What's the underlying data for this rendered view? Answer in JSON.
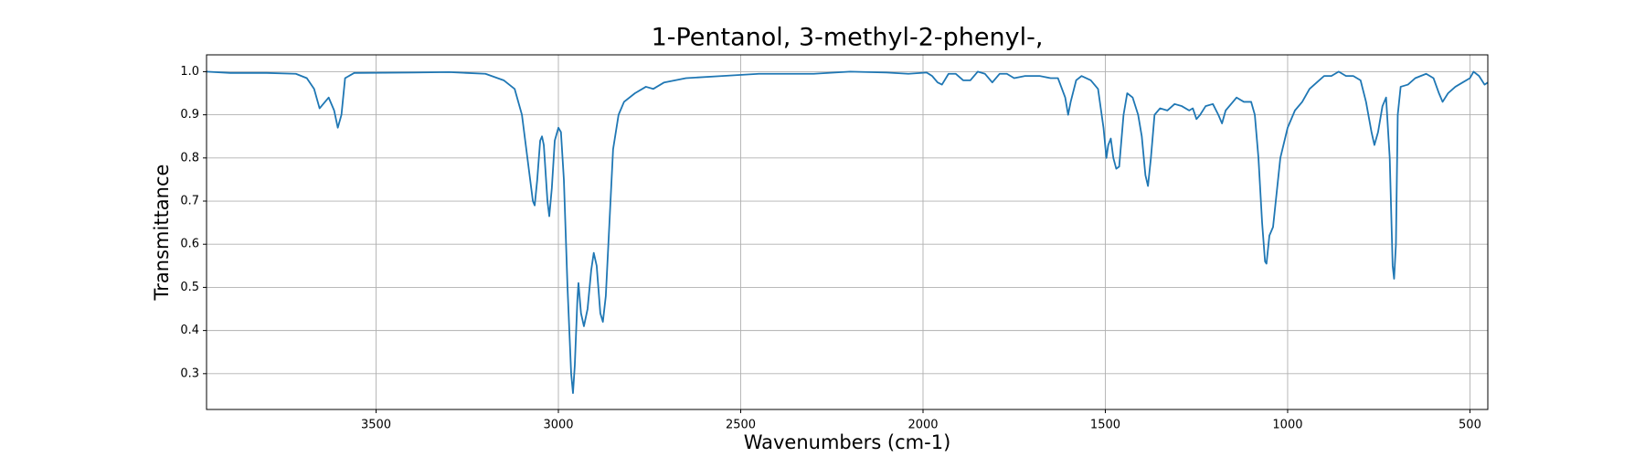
{
  "chart_data": {
    "type": "line",
    "title": "1-Pentanol, 3-methyl-2-phenyl-,",
    "xlabel": "Wavenumbers (cm-1)",
    "ylabel": "Transmittance",
    "color": "#1f77b4",
    "grid": true,
    "xlim": [
      3965,
      451
    ],
    "ylim": [
      0.217,
      1.039
    ],
    "xticks": [
      3500,
      3000,
      2500,
      2000,
      1500,
      1000,
      500
    ],
    "yticks": [
      0.3,
      0.4,
      0.5,
      0.6,
      0.7,
      0.8,
      0.9,
      {
        "value": 1.0,
        "label": "1.0"
      }
    ],
    "x": [
      3965,
      3900,
      3800,
      3720,
      3690,
      3670,
      3655,
      3640,
      3630,
      3615,
      3605,
      3595,
      3585,
      3560,
      3400,
      3300,
      3200,
      3150,
      3120,
      3100,
      3085,
      3070,
      3065,
      3058,
      3050,
      3045,
      3040,
      3030,
      3025,
      3018,
      3010,
      3000,
      2993,
      2985,
      2975,
      2965,
      2960,
      2955,
      2948,
      2945,
      2938,
      2930,
      2920,
      2910,
      2903,
      2895,
      2885,
      2878,
      2870,
      2860,
      2850,
      2835,
      2820,
      2790,
      2760,
      2740,
      2710,
      2650,
      2550,
      2450,
      2300,
      2200,
      2100,
      2040,
      1990,
      1975,
      1960,
      1948,
      1930,
      1910,
      1890,
      1870,
      1850,
      1830,
      1810,
      1790,
      1770,
      1750,
      1720,
      1680,
      1650,
      1630,
      1610,
      1602,
      1595,
      1580,
      1565,
      1540,
      1520,
      1505,
      1497,
      1492,
      1485,
      1478,
      1470,
      1462,
      1450,
      1440,
      1425,
      1410,
      1400,
      1390,
      1383,
      1375,
      1365,
      1350,
      1330,
      1310,
      1290,
      1270,
      1260,
      1250,
      1240,
      1225,
      1205,
      1190,
      1180,
      1170,
      1150,
      1140,
      1120,
      1100,
      1090,
      1080,
      1070,
      1062,
      1058,
      1050,
      1040,
      1030,
      1020,
      1000,
      980,
      960,
      940,
      920,
      900,
      880,
      860,
      840,
      820,
      800,
      785,
      770,
      762,
      752,
      740,
      730,
      720,
      712,
      708,
      703,
      698,
      690,
      670,
      650,
      620,
      600,
      585,
      575,
      560,
      540,
      520,
      500,
      490,
      475,
      460,
      451
    ],
    "values": [
      1.0,
      0.997,
      0.997,
      0.995,
      0.985,
      0.96,
      0.915,
      0.93,
      0.94,
      0.91,
      0.87,
      0.9,
      0.985,
      0.997,
      0.998,
      0.999,
      0.995,
      0.98,
      0.96,
      0.9,
      0.8,
      0.7,
      0.69,
      0.75,
      0.84,
      0.85,
      0.83,
      0.7,
      0.665,
      0.73,
      0.84,
      0.87,
      0.86,
      0.75,
      0.5,
      0.3,
      0.255,
      0.32,
      0.47,
      0.51,
      0.44,
      0.41,
      0.45,
      0.54,
      0.58,
      0.55,
      0.44,
      0.42,
      0.48,
      0.65,
      0.82,
      0.9,
      0.93,
      0.95,
      0.965,
      0.96,
      0.975,
      0.985,
      0.99,
      0.995,
      0.995,
      1.0,
      0.998,
      0.995,
      0.998,
      0.99,
      0.975,
      0.97,
      0.995,
      0.995,
      0.98,
      0.98,
      1.0,
      0.995,
      0.975,
      0.995,
      0.995,
      0.985,
      0.99,
      0.99,
      0.985,
      0.985,
      0.94,
      0.9,
      0.93,
      0.98,
      0.99,
      0.98,
      0.96,
      0.87,
      0.8,
      0.83,
      0.845,
      0.8,
      0.775,
      0.78,
      0.9,
      0.95,
      0.94,
      0.9,
      0.85,
      0.76,
      0.735,
      0.8,
      0.9,
      0.915,
      0.91,
      0.925,
      0.92,
      0.91,
      0.915,
      0.89,
      0.9,
      0.92,
      0.925,
      0.9,
      0.88,
      0.91,
      0.93,
      0.94,
      0.93,
      0.93,
      0.9,
      0.8,
      0.65,
      0.56,
      0.555,
      0.62,
      0.64,
      0.72,
      0.8,
      0.87,
      0.91,
      0.93,
      0.96,
      0.975,
      0.99,
      0.99,
      1.0,
      0.99,
      0.99,
      0.98,
      0.93,
      0.86,
      0.83,
      0.86,
      0.92,
      0.94,
      0.8,
      0.55,
      0.52,
      0.6,
      0.9,
      0.965,
      0.97,
      0.985,
      0.995,
      0.985,
      0.95,
      0.93,
      0.95,
      0.965,
      0.975,
      0.985,
      1.0,
      0.99,
      0.97,
      0.975
    ]
  }
}
